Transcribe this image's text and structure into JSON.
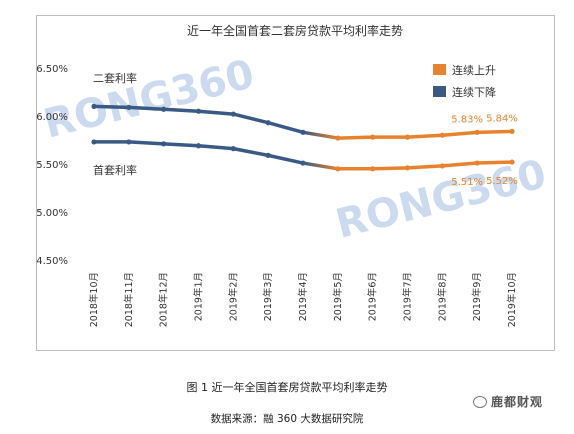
{
  "chart_data": {
    "type": "line",
    "title": "近一年全国首套二套房贷款平均利率走势",
    "categories": [
      "2018年10月",
      "2018年11月",
      "2018年12月",
      "2019年1月",
      "2019年2月",
      "2019年3月",
      "2019年4月",
      "2019年5月",
      "2019年6月",
      "2019年7月",
      "2019年8月",
      "2019年9月",
      "2019年10月"
    ],
    "series": [
      {
        "name": "二套利率",
        "values": [
          6.1,
          6.09,
          6.07,
          6.05,
          6.02,
          5.93,
          5.83,
          5.77,
          5.78,
          5.78,
          5.8,
          5.83,
          5.84
        ]
      },
      {
        "name": "首套利率",
        "values": [
          5.73,
          5.73,
          5.71,
          5.69,
          5.66,
          5.59,
          5.51,
          5.45,
          5.45,
          5.46,
          5.48,
          5.51,
          5.52
        ]
      }
    ],
    "yticks": [
      "6.50%",
      "6.00%",
      "5.50%",
      "5.00%",
      "4.50%"
    ],
    "ylim": [
      4.5,
      6.5
    ],
    "split_index": 7,
    "legend": [
      {
        "label": "连续上升",
        "color": "#e8822e"
      },
      {
        "label": "连续下降",
        "color": "#3a5a85"
      }
    ],
    "legend_position": "top-right",
    "data_labels": [
      {
        "text": "5.83%",
        "series": 0,
        "index": 11
      },
      {
        "text": "5.84%",
        "series": 0,
        "index": 12
      },
      {
        "text": "5.51%",
        "series": 1,
        "index": 11
      },
      {
        "text": "5.52%",
        "series": 1,
        "index": 12
      }
    ],
    "grid": false
  },
  "watermark": "RONG360",
  "caption": "图 1  近一年全国首套房贷款平均利率走势",
  "source": "数据来源：融 360 大数据研究院",
  "brand": "鹿都财观",
  "colors": {
    "down": "#3a5a85",
    "up": "#e8822e",
    "label": "#e8822e",
    "axis": "#333333"
  }
}
